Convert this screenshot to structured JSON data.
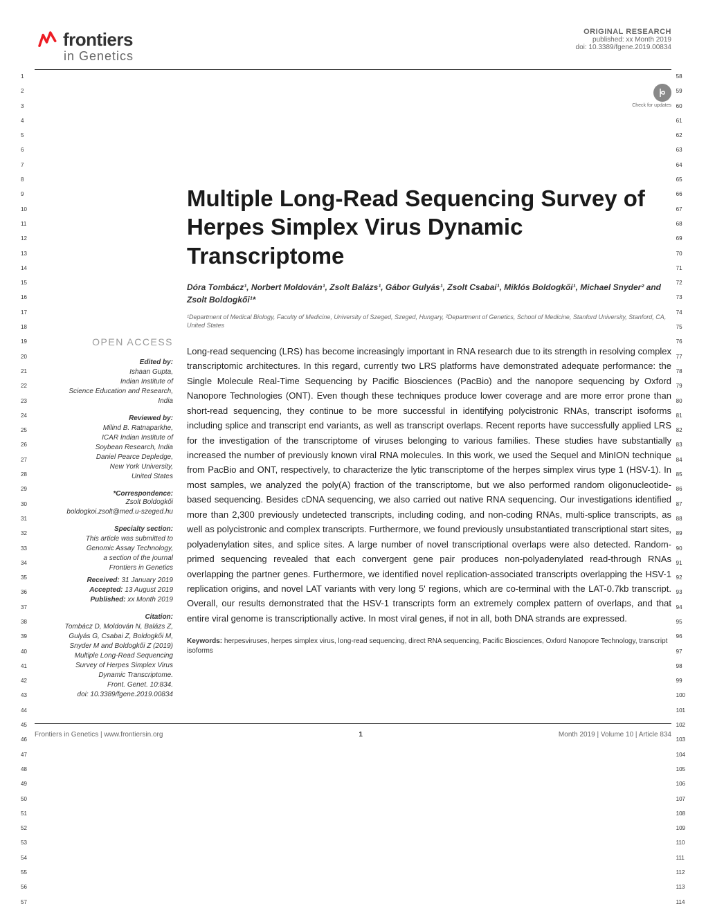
{
  "header": {
    "journal": "frontiers",
    "subjournal": "in Genetics",
    "type": "ORIGINAL RESEARCH",
    "published": "published: xx Month 2019",
    "doi": "doi: 10.3389/fgene.2019.00834",
    "check_updates": "Check for updates"
  },
  "line_numbers": {
    "left_start": 1,
    "left_end": 57,
    "right_start": 58,
    "right_end": 114
  },
  "article": {
    "title": "Multiple Long-Read Sequencing Survey of Herpes Simplex Virus Dynamic Transcriptome",
    "authors_html": "Dóra Tombácz¹, Norbert Moldován¹, Zsolt Balázs¹, Gábor Gulyás¹, Zsolt Csabai¹, Miklós Boldogkői¹, Michael Snyder² and Zsolt Boldogkői¹*",
    "affiliations": "¹Department of Medical Biology, Faculty of Medicine, University of Szeged, Szeged, Hungary, ²Department of Genetics, School of Medicine, Stanford University, Stanford, CA, United States",
    "abstract": "Long-read sequencing (LRS) has become increasingly important in RNA research due to its strength in resolving complex transcriptomic architectures. In this regard, currently two LRS platforms have demonstrated adequate performance: the Single Molecule Real-Time Sequencing by Pacific Biosciences (PacBio) and the nanopore sequencing by Oxford Nanopore Technologies (ONT). Even though these techniques produce lower coverage and are more error prone than short-read sequencing, they continue to be more successful in identifying polycistronic RNAs, transcript isoforms including splice and transcript end variants, as well as transcript overlaps. Recent reports have successfully applied LRS for the investigation of the transcriptome of viruses belonging to various families. These studies have substantially increased the number of previously known viral RNA molecules. In this work, we used the Sequel and MinION technique from PacBio and ONT, respectively, to characterize the lytic transcriptome of the herpes simplex virus type 1 (HSV-1). In most samples, we analyzed the poly(A) fraction of the transcriptome, but we also performed random oligonucleotide-based sequencing. Besides cDNA sequencing, we also carried out native RNA sequencing. Our investigations identified more than 2,300 previously undetected transcripts, including coding, and non-coding RNAs, multi-splice transcripts, as well as polycistronic and complex transcripts. Furthermore, we found previously unsubstantiated transcriptional start sites, polyadenylation sites, and splice sites. A large number of novel transcriptional overlaps were also detected. Random-primed sequencing revealed that each convergent gene pair produces non-polyadenylated read-through RNAs overlapping the partner genes. Furthermore, we identified novel replication-associated transcripts overlapping the HSV-1 replication origins, and novel LAT variants with very long 5' regions, which are co-terminal with the LAT-0.7kb transcript. Overall, our results demonstrated that the HSV-1 transcripts form an extremely complex pattern of overlaps, and that entire viral genome is transcriptionally active. In most viral genes, if not in all, both DNA strands are expressed.",
    "keywords_label": "Keywords:",
    "keywords": "herpesviruses, herpes simplex virus, long-read sequencing, direct RNA sequencing, Pacific Biosciences, Oxford Nanopore Technology, transcript isoforms"
  },
  "sidebar": {
    "open_access": "OPEN ACCESS",
    "edited_by_label": "Edited by:",
    "edited_by": "Ishaan Gupta,\nIndian Institute of\nScience Education and Research,\nIndia",
    "reviewed_by_label": "Reviewed by:",
    "reviewed_by": "Milind B. Ratnaparkhe,\nICAR Indian Institute of\nSoybean Research, India\nDaniel Pearce Depledge,\nNew York University,\nUnited States",
    "correspondence_label": "*Correspondence:",
    "correspondence": "Zsolt Boldogkői\nboldogkoi.zsolt@med.u-szeged.hu",
    "specialty_label": "Specialty section:",
    "specialty": "This article was submitted to\nGenomic Assay Technology,\na section of the journal\nFrontiers in Genetics",
    "received_label": "Received:",
    "received": "31 January 2019",
    "accepted_label": "Accepted:",
    "accepted": "13 August 2019",
    "published_label": "Published:",
    "published": "xx Month 2019",
    "citation_label": "Citation:",
    "citation": "Tombácz D, Moldován N, Balázs Z,\nGulyás G, Csabai Z, Boldogkői M,\nSnyder M and Boldogkői Z (2019)\nMultiple Long-Read Sequencing\nSurvey of Herpes Simplex Virus\nDynamic Transcriptome.\nFront. Genet. 10:834.\ndoi: 10.3389/fgene.2019.00834"
  },
  "footer": {
    "left": "Frontiers in Genetics | www.frontiersin.org",
    "page": "1",
    "right": "Month 2019 | Volume 10 | Article 834"
  },
  "colors": {
    "logo_accent": "#ed1c24",
    "text_primary": "#1a1a1a",
    "text_secondary": "#666666",
    "border": "#333333"
  }
}
